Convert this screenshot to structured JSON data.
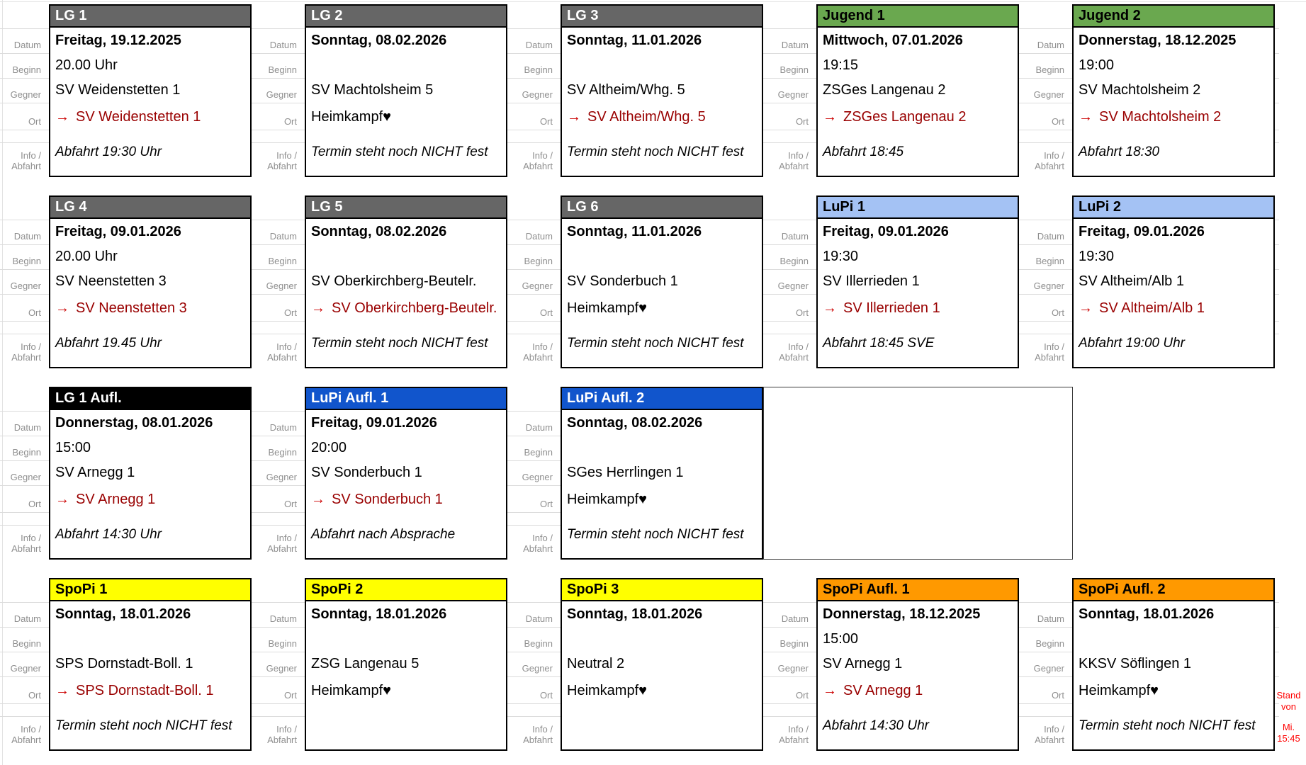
{
  "row_labels": {
    "datum": "Datum",
    "beginn": "Beginn",
    "gegner": "Gegner",
    "ort": "Ort",
    "info_line1": "Info /",
    "info_line2": "Abfahrt"
  },
  "glyphs": {
    "arrow_icon": "→",
    "heart_icon": "♥"
  },
  "palette": {
    "gray": {
      "bg": "#666666",
      "fg": "#ffffff"
    },
    "green": {
      "bg": "#6aa84f",
      "fg": "#000000"
    },
    "lightblue": {
      "bg": "#a4c2f4",
      "fg": "#000000"
    },
    "black": {
      "bg": "#000000",
      "fg": "#ffffff"
    },
    "blue": {
      "bg": "#1155cc",
      "fg": "#ffffff"
    },
    "yellow": {
      "bg": "#ffff00",
      "fg": "#000000"
    },
    "orange": {
      "bg": "#ff9900",
      "fg": "#000000"
    },
    "ort_away_text": "#990000",
    "ort_arrow": "#cc0000",
    "stand_note": "#ff0000"
  },
  "cards": [
    {
      "row": 0,
      "col": 0,
      "title": "LG 1",
      "style": "gray",
      "datum": "Freitag, 19.12.2025",
      "beginn": "20.00 Uhr",
      "gegner": "SV Weidenstetten 1",
      "ort_type": "away",
      "ort": "SV Weidenstetten 1",
      "info": "Abfahrt 19:30 Uhr"
    },
    {
      "row": 0,
      "col": 1,
      "title": "LG 2",
      "style": "gray",
      "datum": "Sonntag, 08.02.2026",
      "beginn": "",
      "gegner": "SV Machtolsheim 5",
      "ort_type": "home",
      "ort": "Heimkampf",
      "info": "Termin steht noch NICHT fest"
    },
    {
      "row": 0,
      "col": 2,
      "title": "LG 3",
      "style": "gray",
      "datum": "Sonntag, 11.01.2026",
      "beginn": "",
      "gegner": "SV Altheim/Whg. 5",
      "ort_type": "away",
      "ort": "SV Altheim/Whg. 5",
      "info": "Termin steht noch NICHT fest"
    },
    {
      "row": 0,
      "col": 3,
      "title": "Jugend 1",
      "style": "green",
      "datum": "Mittwoch, 07.01.2026",
      "beginn": "19:15",
      "gegner": "ZSGes Langenau 2",
      "ort_type": "away",
      "ort": "ZSGes Langenau 2",
      "info": "Abfahrt 18:45"
    },
    {
      "row": 0,
      "col": 4,
      "title": "Jugend 2",
      "style": "green",
      "datum": "Donnerstag, 18.12.2025",
      "beginn": "19:00",
      "gegner": "SV Machtolsheim 2",
      "ort_type": "away",
      "ort": "SV Machtolsheim 2",
      "info": "Abfahrt 18:30"
    },
    {
      "row": 1,
      "col": 0,
      "title": "LG 4",
      "style": "gray",
      "datum": "Freitag, 09.01.2026",
      "beginn": "20.00 Uhr",
      "gegner": "SV Neenstetten 3",
      "ort_type": "away",
      "ort": "SV Neenstetten 3",
      "info": "Abfahrt 19.45 Uhr"
    },
    {
      "row": 1,
      "col": 1,
      "title": "LG 5",
      "style": "gray",
      "datum": "Sonntag, 08.02.2026",
      "beginn": "",
      "gegner": "SV Oberkirchberg-Beutelr.",
      "ort_type": "away",
      "ort": "SV Oberkirchberg-Beutelr.",
      "info": "Termin steht noch NICHT fest"
    },
    {
      "row": 1,
      "col": 2,
      "title": "LG 6",
      "style": "gray",
      "datum": "Sonntag, 11.01.2026",
      "beginn": "",
      "gegner": "SV Sonderbuch 1",
      "ort_type": "home",
      "ort": "Heimkampf",
      "info": "Termin steht noch NICHT fest"
    },
    {
      "row": 1,
      "col": 3,
      "title": "LuPi 1",
      "style": "lightblue",
      "datum": "Freitag, 09.01.2026",
      "beginn": "19:30",
      "gegner": "SV Illerrieden 1",
      "ort_type": "away",
      "ort": "SV Illerrieden 1",
      "info": "Abfahrt 18:45 SVE"
    },
    {
      "row": 1,
      "col": 4,
      "title": "LuPi 2",
      "style": "lightblue",
      "datum": "Freitag, 09.01.2026",
      "beginn": "19:30",
      "gegner": "SV Altheim/Alb 1",
      "ort_type": "away",
      "ort": "SV Altheim/Alb 1",
      "info": "Abfahrt 19:00 Uhr"
    },
    {
      "row": 2,
      "col": 0,
      "title": "LG 1 Aufl.",
      "style": "black",
      "datum": "Donnerstag, 08.01.2026",
      "beginn": "15:00",
      "gegner": "SV Arnegg 1",
      "ort_type": "away",
      "ort": "SV Arnegg 1",
      "info": "Abfahrt 14:30 Uhr"
    },
    {
      "row": 2,
      "col": 1,
      "title": "LuPi Aufl. 1",
      "style": "blue",
      "datum": "Freitag, 09.01.2026",
      "beginn": "20:00",
      "gegner": "SV Sonderbuch 1",
      "ort_type": "away",
      "ort": "SV Sonderbuch 1",
      "info": "Abfahrt nach Absprache"
    },
    {
      "row": 2,
      "col": 2,
      "title": "LuPi Aufl. 2",
      "style": "blue",
      "datum": "Sonntag, 08.02.2026",
      "beginn": "",
      "gegner": "SGes Herrlingen 1",
      "ort_type": "home",
      "ort": "Heimkampf",
      "info": "Termin steht noch NICHT fest"
    },
    {
      "row": 3,
      "col": 0,
      "title": "SpoPi 1",
      "style": "yellow",
      "datum": "Sonntag, 18.01.2026",
      "beginn": "",
      "gegner": "SPS Dornstadt-Boll. 1",
      "ort_type": "away",
      "ort": "SPS Dornstadt-Boll. 1",
      "info": "Termin steht noch NICHT fest"
    },
    {
      "row": 3,
      "col": 1,
      "title": "SpoPi 2",
      "style": "yellow",
      "datum": "Sonntag, 18.01.2026",
      "beginn": "",
      "gegner": "ZSG Langenau 5",
      "ort_type": "home",
      "ort": "Heimkampf",
      "info": ""
    },
    {
      "row": 3,
      "col": 2,
      "title": "SpoPi 3",
      "style": "yellow",
      "datum": "Sonntag, 18.01.2026",
      "beginn": "",
      "gegner": "Neutral 2",
      "ort_type": "home",
      "ort": "Heimkampf",
      "info": ""
    },
    {
      "row": 3,
      "col": 3,
      "title": "SpoPi Aufl. 1",
      "style": "orange",
      "datum": "Donnerstag, 18.12.2025",
      "beginn": "15:00",
      "gegner": "SV Arnegg 1",
      "ort_type": "away",
      "ort": "SV Arnegg 1",
      "info": "Abfahrt 14:30 Uhr"
    },
    {
      "row": 3,
      "col": 4,
      "title": "SpoPi Aufl. 2",
      "style": "orange",
      "datum": "Sonntag, 18.01.2026",
      "beginn": "",
      "gegner": "KKSV Söflingen 1",
      "ort_type": "home",
      "ort": "Heimkampf",
      "info": "Termin steht noch NICHT fest"
    }
  ],
  "stand_note": {
    "lines": [
      "Stand",
      "von",
      "Mi.",
      "15:45"
    ]
  }
}
